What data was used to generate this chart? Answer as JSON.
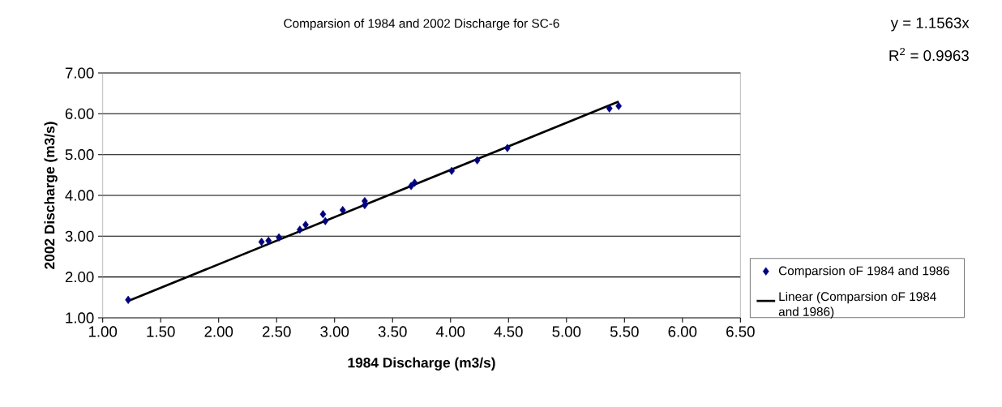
{
  "chart_data": {
    "type": "scatter",
    "title": "Comparsion of 1984 and 2002 Discharge for SC-6",
    "xlabel": "1984 Discharge (m3/s)",
    "ylabel": "2002 Discharge (m3/s)",
    "annotations": [
      "y = 1.1563x",
      "R$^{2}$ = 0.9963"
    ],
    "series": [
      {
        "name": "Comparsion oF 1984 and 1986",
        "marker": "diamond",
        "color": "#000080",
        "x": [
          1.22,
          2.37,
          2.43,
          2.52,
          2.7,
          2.75,
          2.9,
          2.92,
          3.07,
          3.26,
          3.26,
          3.66,
          3.69,
          4.01,
          4.23,
          4.49,
          5.37,
          5.45
        ],
        "values": [
          1.44,
          2.86,
          2.89,
          2.97,
          3.16,
          3.28,
          3.54,
          3.37,
          3.64,
          3.86,
          3.76,
          4.23,
          4.31,
          4.6,
          4.86,
          5.16,
          6.13,
          6.19
        ]
      },
      {
        "name": "Linear (Comparsion oF 1984 and 1986)",
        "type": "line",
        "marker": "none",
        "color": "#000000",
        "x": [
          1.22,
          5.45
        ],
        "values": [
          1.41,
          6.3
        ]
      }
    ],
    "xlim": [
      1,
      6.5
    ],
    "ylim": [
      1,
      7
    ],
    "xticks": [
      {
        "value": 1,
        "label": "1.00"
      },
      {
        "value": 1.5,
        "label": "1.50"
      },
      {
        "value": 2,
        "label": "2.00"
      },
      {
        "value": 2.5,
        "label": "2.50"
      },
      {
        "value": 3,
        "label": "3.00"
      },
      {
        "value": 3.5,
        "label": "3.50"
      },
      {
        "value": 4,
        "label": "4.00"
      },
      {
        "value": 4.5,
        "label": "4.50"
      },
      {
        "value": 5,
        "label": "5.00"
      },
      {
        "value": 5.5,
        "label": "5.50"
      },
      {
        "value": 6,
        "label": "6.00"
      },
      {
        "value": 6.5,
        "label": "6.50"
      }
    ],
    "yticks": [
      {
        "value": 1,
        "label": "1.00"
      },
      {
        "value": 2,
        "label": "2.00"
      },
      {
        "value": 3,
        "label": "3.00"
      },
      {
        "value": 4,
        "label": "4.00"
      },
      {
        "value": 5,
        "label": "5.00"
      },
      {
        "value": 6,
        "label": "6.00"
      },
      {
        "value": 7,
        "label": "7.00"
      }
    ],
    "grid": "y",
    "legend": "right"
  }
}
